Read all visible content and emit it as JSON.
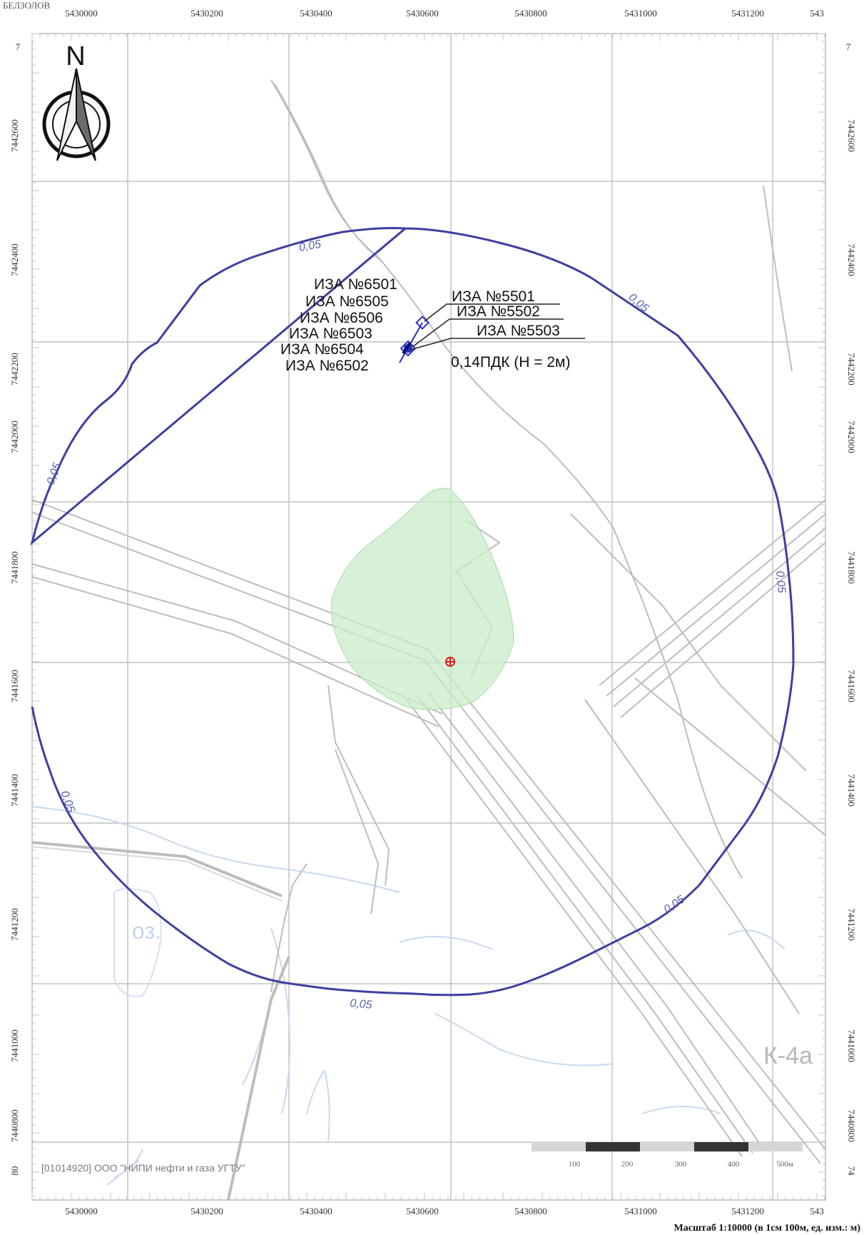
{
  "top_left_caption": "БЕЛЗОЛОВ",
  "north_arrow": {
    "letter": "N",
    "icon": "north-arrow-compass-icon"
  },
  "axes": {
    "x_ticks": [
      "5430000",
      "5430200",
      "5430400",
      "5430600",
      "5430800",
      "5431000",
      "5431200",
      "543"
    ],
    "y_ticks": [
      "7442600",
      "7442400",
      "7442200",
      "7442000",
      "7441800",
      "7441600",
      "7441400",
      "7441200",
      "7441000",
      "7440800"
    ],
    "y_partial_top_left": "7",
    "y_partial_top_right": "7",
    "y_partial_bottom_left": "80",
    "y_partial_bottom_right": "74"
  },
  "sources": {
    "left_labels": [
      "ИЗА №6501",
      "ИЗА №6505",
      "ИЗА №6506",
      "ИЗА №6503",
      "ИЗА №6504",
      "ИЗА №6502"
    ],
    "right_labels": [
      "ИЗА №5501",
      "ИЗА №5502",
      "ИЗА №5503"
    ]
  },
  "max_point_label": "0,14ПДК (Н = 2м)",
  "contours": [
    {
      "value_label": "0,05"
    },
    {
      "value_label": "0,05"
    },
    {
      "value_label": "0,05"
    },
    {
      "value_label": "0,05"
    },
    {
      "value_label": "0,05"
    },
    {
      "value_label": "0,05"
    },
    {
      "value_label": "0,05"
    }
  ],
  "place_labels": {
    "lake": "оз.",
    "block": "К-4а"
  },
  "credit": "[01014920] ООО \"НИПИ нефти и газа УГТУ\"",
  "scale_bar": {
    "labels": [
      "100",
      "200",
      "300",
      "400",
      "500м"
    ]
  },
  "scale_caption": "Масштаб 1:10000 (в 1см 100м, ед. изм.: м)",
  "colors": {
    "contour": "#3e3fa0",
    "plume_fill": "#c9ecc9",
    "grid": "#bdbdbd",
    "pipelines": "#b8b8b8",
    "water": "#c9d9ee",
    "source_marker": "#2a2fc0",
    "max_point": "#d42020"
  }
}
